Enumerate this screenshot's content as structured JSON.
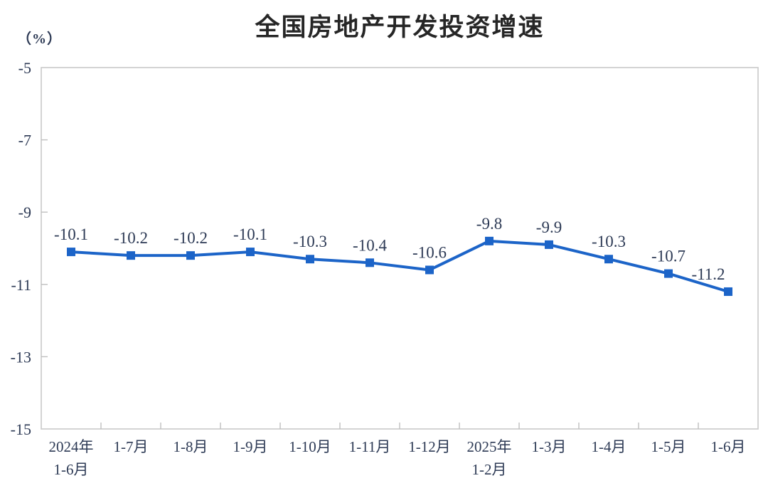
{
  "page": {
    "background": "#ffffff"
  },
  "chart_data": {
    "type": "line",
    "title": "全国房地产开发投资增速",
    "unit_label": "（%）",
    "categories": [
      [
        "2024年",
        "1-6月"
      ],
      [
        "1-7月"
      ],
      [
        "1-8月"
      ],
      [
        "1-9月"
      ],
      [
        "1-10月"
      ],
      [
        "1-11月"
      ],
      [
        "1-12月"
      ],
      [
        "2025年",
        "1-2月"
      ],
      [
        "1-3月"
      ],
      [
        "1-4月"
      ],
      [
        "1-5月"
      ],
      [
        "1-6月"
      ]
    ],
    "series": [
      {
        "name": "全国房地产开发投资增速",
        "values": [
          -10.1,
          -10.2,
          -10.2,
          -10.1,
          -10.3,
          -10.4,
          -10.6,
          -9.8,
          -9.9,
          -10.3,
          -10.7,
          -11.2
        ]
      }
    ],
    "data_labels": [
      "-10.1",
      "-10.2",
      "-10.2",
      "-10.1",
      "-10.3",
      "-10.4",
      "-10.6",
      "-9.8",
      "-9.9",
      "-10.3",
      "-10.7",
      "-11.2"
    ],
    "xlabel": "",
    "ylabel": "（%）",
    "ylim": [
      -15,
      -5
    ],
    "y_ticks": [
      -5,
      -7,
      -9,
      -11,
      -13,
      -15
    ],
    "grid": false,
    "legend": "none",
    "marker": "square",
    "colors": {
      "line": "#1c64c8",
      "marker": "#1c64c8",
      "border": "#c9c9c9",
      "tick": "#bfbfbf",
      "axis_label": "#2d3a55",
      "data_label": "#2d3a55",
      "title": "#262626"
    }
  }
}
